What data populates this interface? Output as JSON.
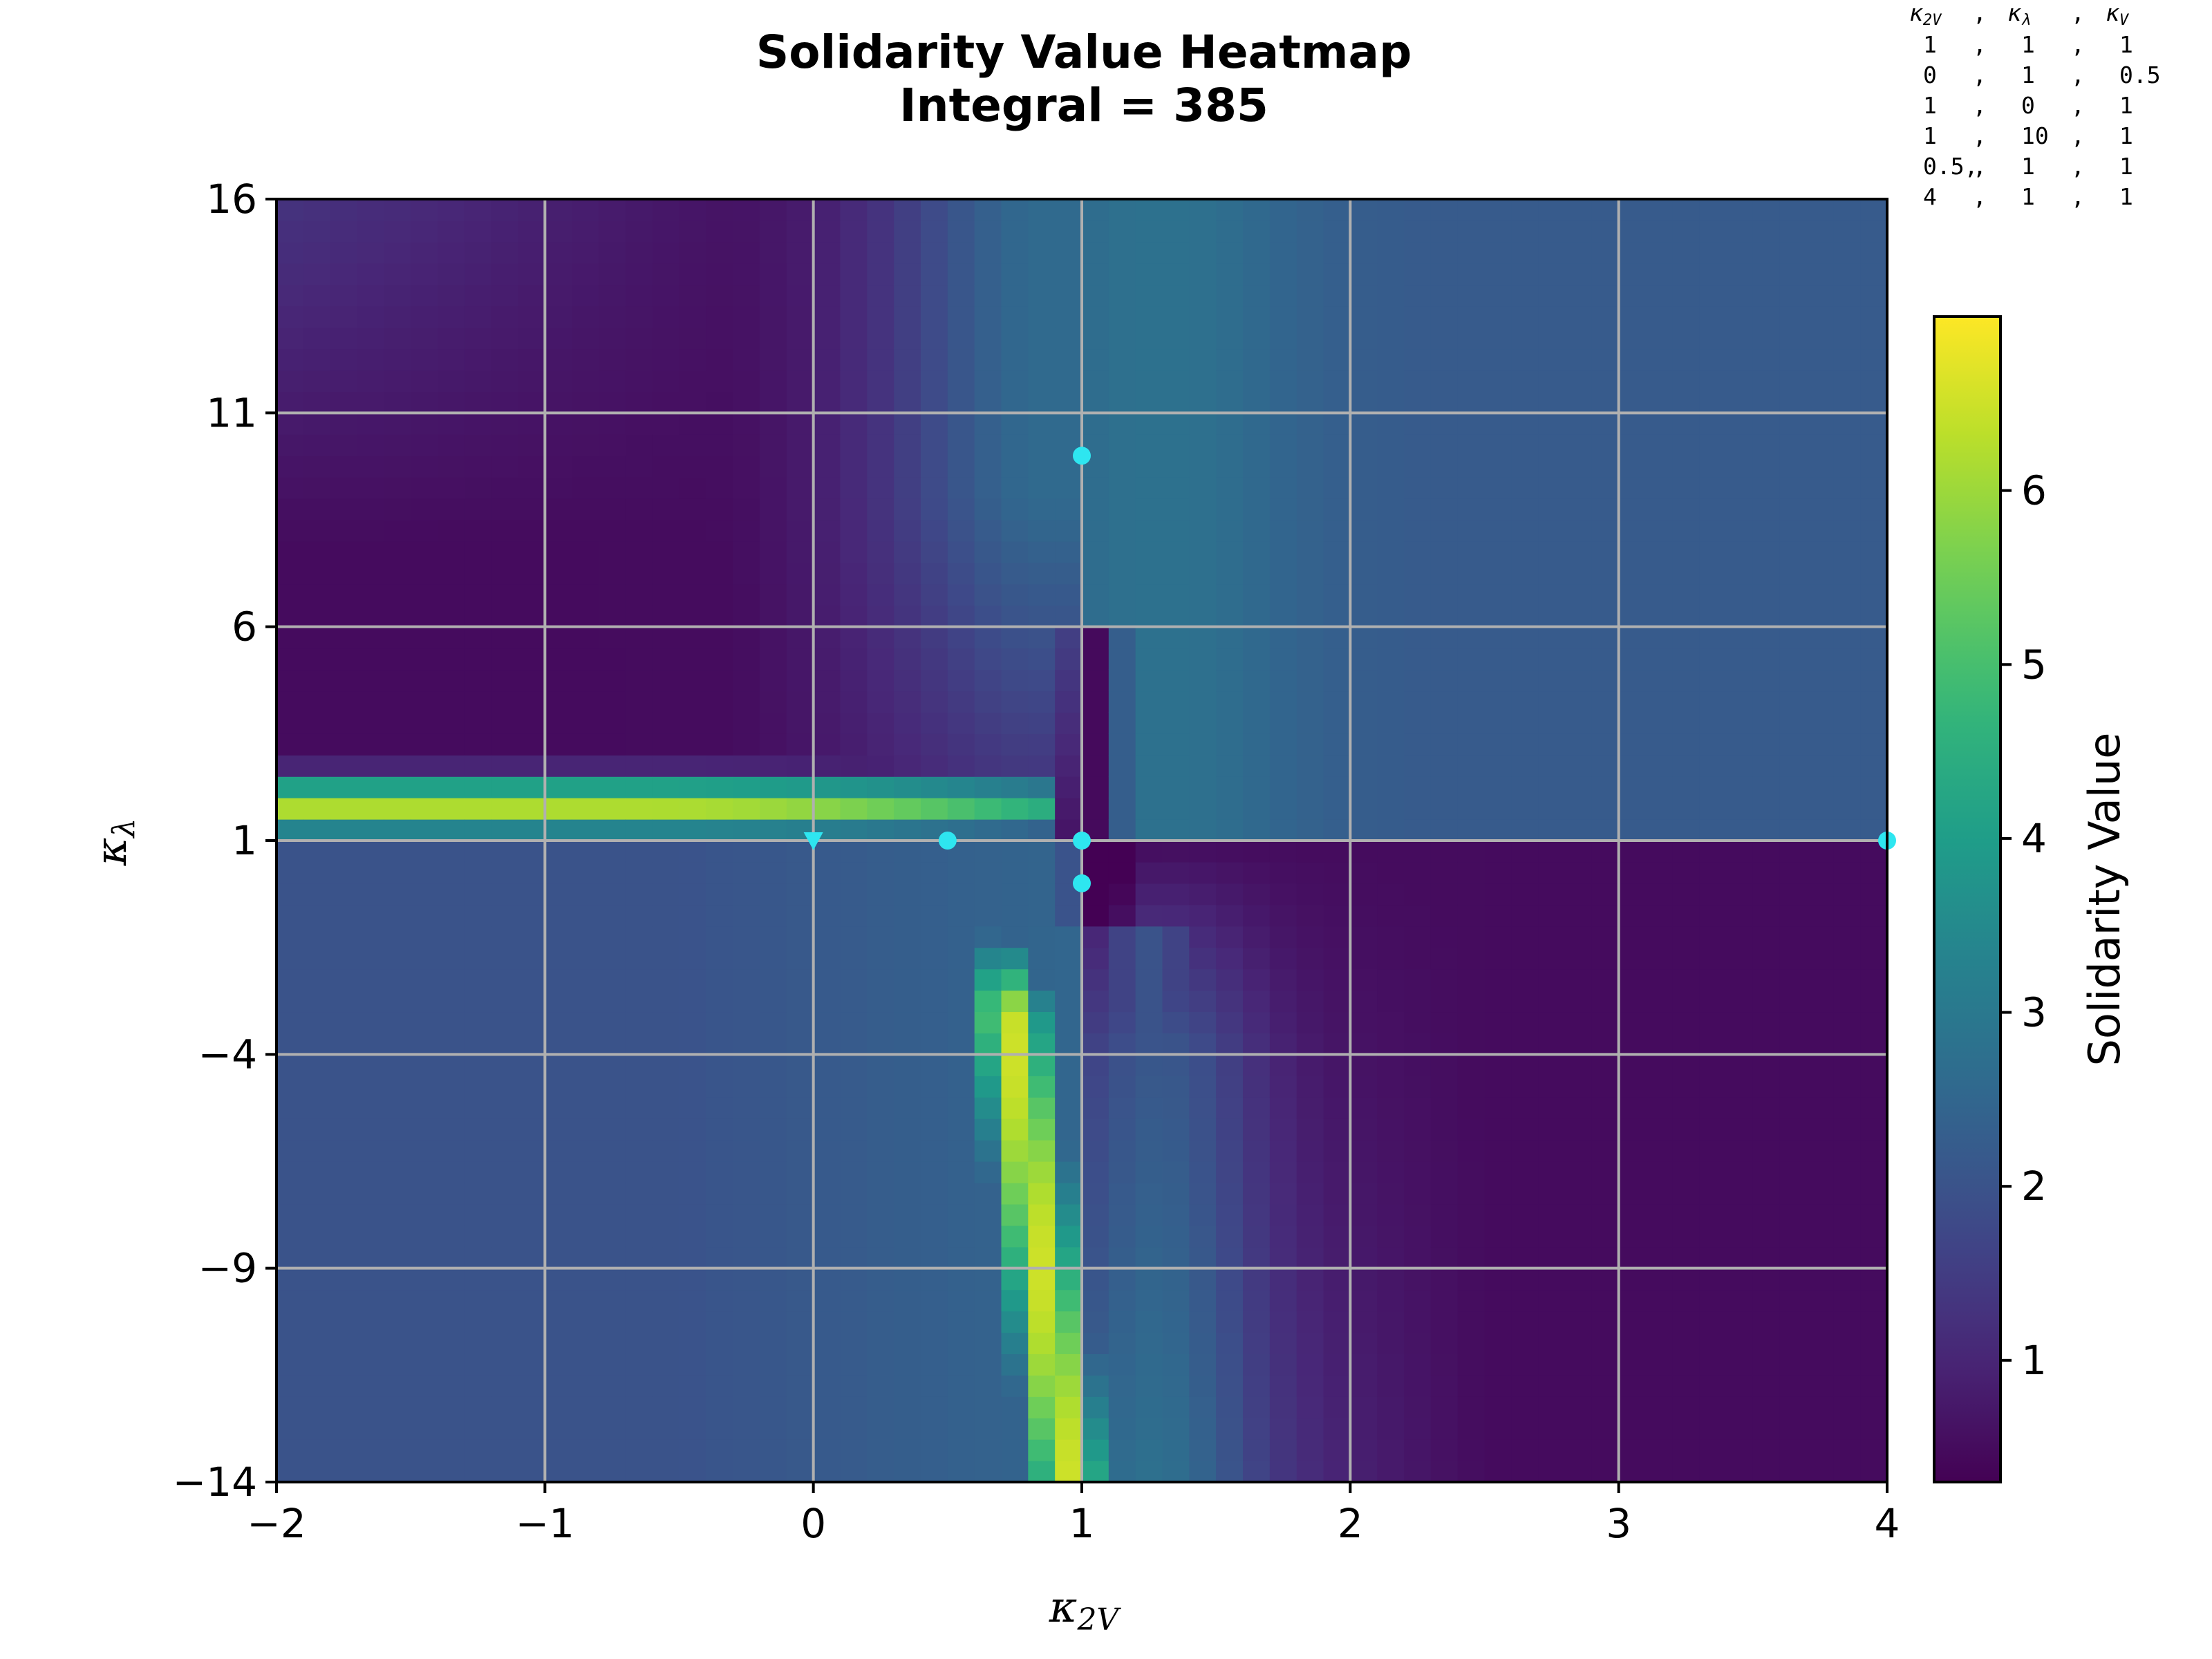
{
  "chart_data": {
    "type": "heatmap",
    "title": "Solidarity Value Heatmap",
    "subtitle": "Integral = 385",
    "xlabel": "κ2V",
    "ylabel": "κλ",
    "xlim": [
      -2,
      4
    ],
    "ylim": [
      -14,
      16
    ],
    "x_ticks": [
      "−2",
      "−1",
      "0",
      "1",
      "2",
      "3",
      "4"
    ],
    "y_ticks": [
      "−14",
      "−9",
      "−4",
      "1",
      "6",
      "11",
      "16"
    ],
    "grid": true,
    "colorbar": {
      "label": "Solidarity Value",
      "range": [
        0.3,
        7.0
      ],
      "ticks": [
        "1",
        "2",
        "3",
        "4",
        "5",
        "6"
      ],
      "colormap": "viridis"
    },
    "basis_table": {
      "header": [
        "κ2V",
        "κλ",
        "κV"
      ],
      "rows": [
        [
          "1",
          "1",
          "1"
        ],
        [
          "0",
          "1",
          "0.5"
        ],
        [
          "1",
          "0",
          "1"
        ],
        [
          "1",
          "10",
          "1"
        ],
        [
          "0.5,",
          "1",
          "1"
        ],
        [
          "4",
          "1",
          "1"
        ]
      ]
    },
    "basis_points": [
      {
        "k2v": 1,
        "kl": 1,
        "kv": 1
      },
      {
        "k2v": 0,
        "kl": 1,
        "kv": 0.5
      },
      {
        "k2v": 1,
        "kl": 0,
        "kv": 1
      },
      {
        "k2v": 1,
        "kl": 10,
        "kv": 1
      },
      {
        "k2v": 0.5,
        "kl": 1,
        "kv": 1
      },
      {
        "k2v": 4,
        "kl": 1,
        "kv": 1
      }
    ],
    "marker_color": "#2ee6f0",
    "grid_color": "#b0b0b0"
  }
}
